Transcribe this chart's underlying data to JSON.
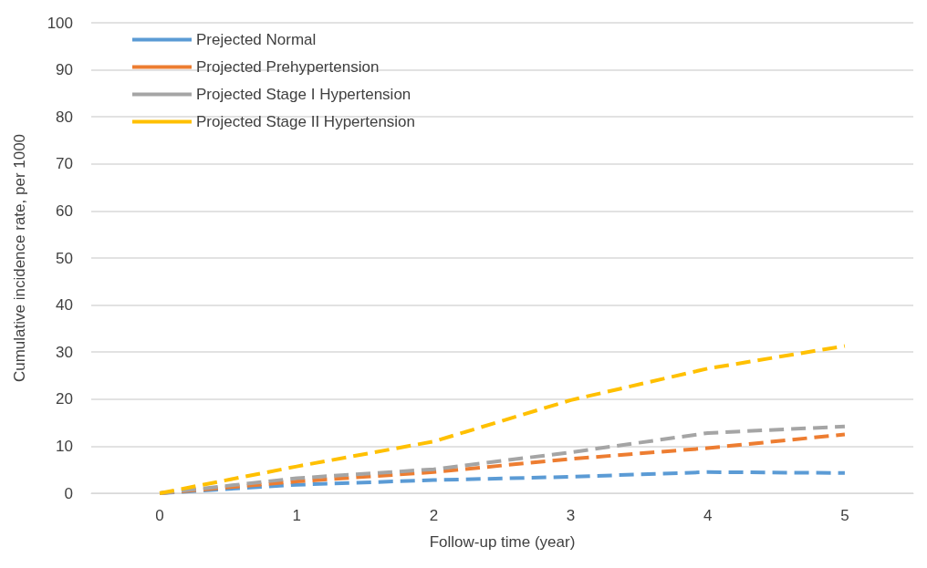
{
  "chart_data": {
    "type": "line",
    "xlabel": "Follow-up time (year)",
    "ylabel": "Cumulative incidence rate, per 1000",
    "categories": [
      "0",
      "1",
      "2",
      "3",
      "4",
      "5"
    ],
    "series": [
      {
        "name": "Prejected Normal",
        "color": "#5b9bd5",
        "values": [
          0,
          1.8,
          2.8,
          3.5,
          4.5,
          4.3
        ]
      },
      {
        "name": "Projected Prehypertension",
        "color": "#ed7d31",
        "values": [
          0,
          2.5,
          4.5,
          7.3,
          9.6,
          12.5
        ]
      },
      {
        "name": "Projected Stage I Hypertension",
        "color": "#a5a5a5",
        "values": [
          0,
          3.2,
          5.1,
          8.7,
          12.8,
          14.2
        ]
      },
      {
        "name": "Projected Stage II Hypertension",
        "color": "#ffc000",
        "values": [
          0,
          5.7,
          11,
          19.8,
          26.5,
          31.3
        ]
      }
    ],
    "ylim": [
      0,
      100
    ],
    "yticks": [
      0,
      10,
      20,
      30,
      40,
      50,
      60,
      70,
      80,
      90,
      100
    ],
    "grid": "y",
    "legend": "top left",
    "marker": "none",
    "line_style": "dashed"
  }
}
